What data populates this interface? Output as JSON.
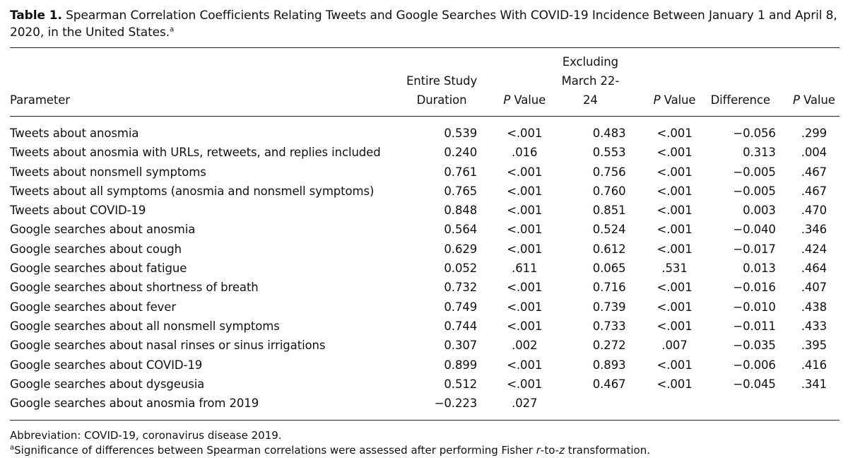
{
  "caption": {
    "label": "Table 1.",
    "text": " Spearman Correlation Coefficients Relating Tweets and Google Searches With COVID-19 Incidence Between January 1 and April 8, 2020, in the United States.",
    "footnote_marker": "a"
  },
  "columns": {
    "parameter": "Parameter",
    "entire_line1": "Entire Study",
    "entire_line2": "Duration",
    "p_value_1": "P Value",
    "excluding_line1": "Excluding",
    "excluding_line2": "March 22-24",
    "p_value_2": "P Value",
    "difference": "Difference",
    "p_value_3": "P Value"
  },
  "rows": [
    {
      "parameter": "Tweets about anosmia",
      "entire": "0.539",
      "p1": "<.001",
      "excluding": "0.483",
      "p2": "<.001",
      "difference": "−0.056",
      "p3": ".299"
    },
    {
      "parameter": "Tweets about anosmia with URLs, retweets, and replies included",
      "entire": "0.240",
      "p1": ".016",
      "excluding": "0.553",
      "p2": "<.001",
      "difference": "0.313",
      "p3": ".004"
    },
    {
      "parameter": "Tweets about nonsmell symptoms",
      "entire": "0.761",
      "p1": "<.001",
      "excluding": "0.756",
      "p2": "<.001",
      "difference": "−0.005",
      "p3": ".467"
    },
    {
      "parameter": "Tweets about all symptoms (anosmia and nonsmell symptoms)",
      "entire": "0.765",
      "p1": "<.001",
      "excluding": "0.760",
      "p2": "<.001",
      "difference": "−0.005",
      "p3": ".467"
    },
    {
      "parameter": "Tweets about COVID-19",
      "entire": "0.848",
      "p1": "<.001",
      "excluding": "0.851",
      "p2": "<.001",
      "difference": "0.003",
      "p3": ".470"
    },
    {
      "parameter": "Google searches about anosmia",
      "entire": "0.564",
      "p1": "<.001",
      "excluding": "0.524",
      "p2": "<.001",
      "difference": "−0.040",
      "p3": ".346"
    },
    {
      "parameter": "Google searches about cough",
      "entire": "0.629",
      "p1": "<.001",
      "excluding": "0.612",
      "p2": "<.001",
      "difference": "−0.017",
      "p3": ".424"
    },
    {
      "parameter": "Google searches about fatigue",
      "entire": "0.052",
      "p1": ".611",
      "excluding": "0.065",
      "p2": ".531",
      "difference": "0.013",
      "p3": ".464"
    },
    {
      "parameter": "Google searches about shortness of breath",
      "entire": "0.732",
      "p1": "<.001",
      "excluding": "0.716",
      "p2": "<.001",
      "difference": "−0.016",
      "p3": ".407"
    },
    {
      "parameter": "Google searches about fever",
      "entire": "0.749",
      "p1": "<.001",
      "excluding": "0.739",
      "p2": "<.001",
      "difference": "−0.010",
      "p3": ".438"
    },
    {
      "parameter": "Google searches about all nonsmell symptoms",
      "entire": "0.744",
      "p1": "<.001",
      "excluding": "0.733",
      "p2": "<.001",
      "difference": "−0.011",
      "p3": ".433"
    },
    {
      "parameter": "Google searches about nasal rinses or sinus irrigations",
      "entire": "0.307",
      "p1": ".002",
      "excluding": "0.272",
      "p2": ".007",
      "difference": "−0.035",
      "p3": ".395"
    },
    {
      "parameter": "Google searches about COVID-19",
      "entire": "0.899",
      "p1": "<.001",
      "excluding": "0.893",
      "p2": "<.001",
      "difference": "−0.006",
      "p3": ".416"
    },
    {
      "parameter": "Google searches about dysgeusia",
      "entire": "0.512",
      "p1": "<.001",
      "excluding": "0.467",
      "p2": "<.001",
      "difference": "−0.045",
      "p3": ".341"
    },
    {
      "parameter": "Google searches about anosmia from 2019",
      "entire": "−0.223",
      "p1": ".027",
      "excluding": "",
      "p2": "",
      "difference": "",
      "p3": ""
    }
  ],
  "footnotes": {
    "abbreviation": "Abbreviation: COVID-19, coronavirus disease 2019.",
    "note_marker": "a",
    "note_text_before": "Significance of differences between Spearman correlations were assessed after performing Fisher ",
    "note_italic_r": "r",
    "note_text_middle": "-to-",
    "note_italic_z": "z",
    "note_text_after": " transformation."
  }
}
